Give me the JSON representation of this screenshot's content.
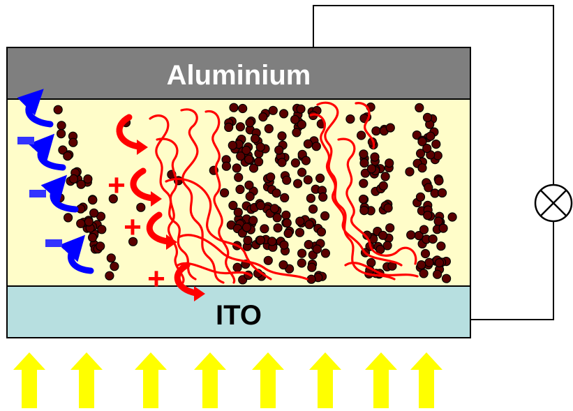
{
  "electrodes": {
    "top_label": "Aluminium",
    "bottom_label": "ITO"
  },
  "charges": {
    "hole_symbol": "+",
    "electron_symbol": "-"
  },
  "colors": {
    "aluminium": "#7f7f7f",
    "active_layer": "#fffdc9",
    "ito": "#b7dfe0",
    "particle": "#5a0000",
    "polymer_chain": "#ff0000",
    "electron_arrow": "#0000ff",
    "hole_arrow": "#ff0000",
    "light_arrow": "#ffff00"
  },
  "icons": {
    "load": "lamp-icon",
    "light": "light-arrow-icon"
  }
}
